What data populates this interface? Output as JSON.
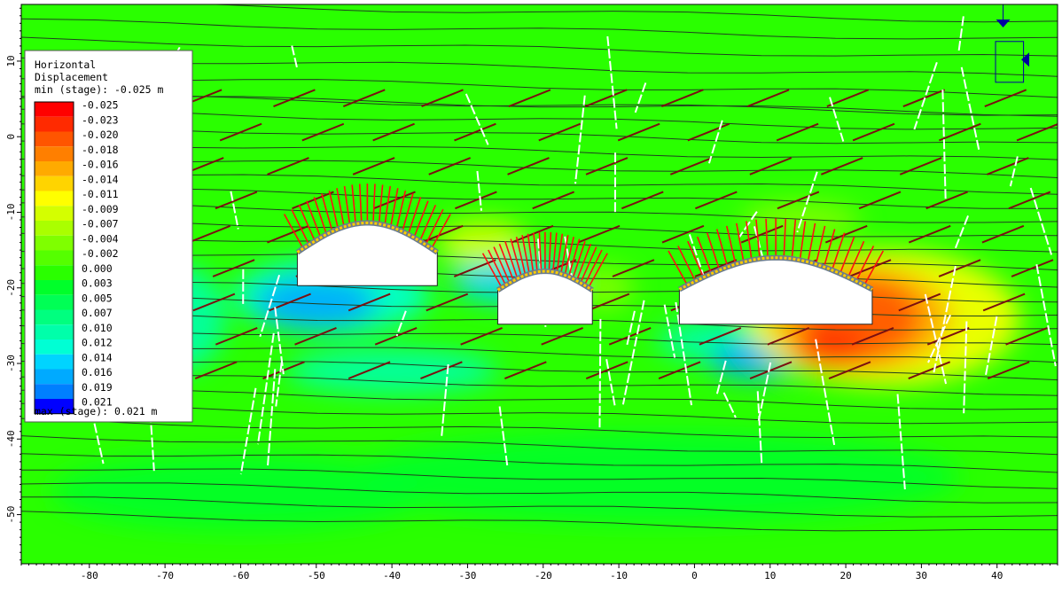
{
  "chart_data": {
    "type": "heatmap",
    "title": "",
    "xlabel": "",
    "ylabel": "",
    "xlim": [
      -89,
      48
    ],
    "ylim": [
      -56.5,
      17.5
    ],
    "x_ticks": [
      -80,
      -70,
      -60,
      -50,
      -40,
      -30,
      -20,
      -10,
      0,
      10,
      20,
      30,
      40
    ],
    "y_ticks": [
      10,
      0,
      -10,
      -20,
      -30,
      -40,
      -50
    ],
    "grid": false,
    "legend": {
      "placement": "top-left",
      "title_lines": [
        "Horizontal",
        "Displacement",
        "min (stage): -0.025 m"
      ],
      "max_line": "max (stage): 0.021 m",
      "entries": [
        {
          "label": "-0.025",
          "color": "#ff0000"
        },
        {
          "label": "-0.023",
          "color": "#ff2a00"
        },
        {
          "label": "-0.020",
          "color": "#ff5500"
        },
        {
          "label": "-0.018",
          "color": "#ff7f00"
        },
        {
          "label": "-0.016",
          "color": "#ffaa00"
        },
        {
          "label": "-0.014",
          "color": "#ffd400"
        },
        {
          "label": "-0.011",
          "color": "#ffff00"
        },
        {
          "label": "-0.009",
          "color": "#d4ff00"
        },
        {
          "label": "-0.007",
          "color": "#aaff00"
        },
        {
          "label": "-0.004",
          "color": "#7fff00"
        },
        {
          "label": "-0.002",
          "color": "#55ff00"
        },
        {
          "label": "0.000",
          "color": "#2aff00"
        },
        {
          "label": "0.003",
          "color": "#00ff2a"
        },
        {
          "label": "0.005",
          "color": "#00ff55"
        },
        {
          "label": "0.007",
          "color": "#00ff7f"
        },
        {
          "label": "0.010",
          "color": "#00ffaa"
        },
        {
          "label": "0.012",
          "color": "#00ffd4"
        },
        {
          "label": "0.014",
          "color": "#00d4ff"
        },
        {
          "label": "0.016",
          "color": "#00aaff"
        },
        {
          "label": "0.019",
          "color": "#007fff"
        },
        {
          "label": "0.021",
          "color": "#0000ff"
        }
      ]
    },
    "background_color": "#2aff00",
    "contour_regions": [
      {
        "type": "ellipse",
        "cx": -48,
        "cy": -21,
        "rx": 13,
        "ry": 5,
        "value": 0.012
      },
      {
        "type": "ellipse",
        "cx": -50,
        "cy": -22,
        "rx": 8,
        "ry": 3.5,
        "value": 0.016
      },
      {
        "type": "ellipse",
        "cx": -24,
        "cy": -19,
        "rx": 8,
        "ry": 3,
        "value": 0.014
      },
      {
        "type": "ellipse",
        "cx": -40,
        "cy": -31,
        "rx": 14,
        "ry": 3,
        "value": 0.01
      },
      {
        "type": "ellipse",
        "cx": -68,
        "cy": -24,
        "rx": 6,
        "ry": 7,
        "value": 0.01
      },
      {
        "type": "ellipse",
        "cx": 5,
        "cy": -27,
        "rx": 10,
        "ry": 3,
        "value": 0.01
      },
      {
        "type": "ellipse",
        "cx": 8,
        "cy": -29.5,
        "rx": 6,
        "ry": 2.5,
        "value": 0.016
      },
      {
        "type": "ellipse",
        "cx": 25,
        "cy": -24,
        "rx": 18,
        "ry": 9,
        "value": -0.011
      },
      {
        "type": "ellipse",
        "cx": 22,
        "cy": -24,
        "rx": 12,
        "ry": 7,
        "value": -0.016
      },
      {
        "type": "ellipse",
        "cx": 22,
        "cy": -24,
        "rx": 8,
        "ry": 5.5,
        "value": -0.02
      },
      {
        "type": "ellipse",
        "cx": 18,
        "cy": -28,
        "rx": 5,
        "ry": 2.5,
        "value": -0.023
      },
      {
        "type": "ellipse",
        "cx": 14,
        "cy": -11,
        "rx": 8,
        "ry": 2.5,
        "value": -0.004
      },
      {
        "type": "ellipse",
        "cx": -28,
        "cy": -14,
        "rx": 6,
        "ry": 3,
        "value": -0.009
      },
      {
        "type": "ellipse",
        "cx": -12,
        "cy": -20,
        "rx": 4,
        "ry": 3,
        "value": -0.004
      },
      {
        "type": "ellipse",
        "cx": -5,
        "cy": -45,
        "rx": 40,
        "ry": 6,
        "value": 0.003
      },
      {
        "type": "ellipse",
        "cx": -60,
        "cy": -47,
        "rx": 25,
        "ry": 5,
        "value": 0.003
      }
    ],
    "excavations": [
      {
        "name": "left",
        "x0": -52.5,
        "x1": -34,
        "floor": -19.7,
        "spring": -15.3,
        "crown": -11.4
      },
      {
        "name": "middle",
        "x0": -26,
        "x1": -13.5,
        "floor": -24.8,
        "spring": -20.3,
        "crown": -17.8
      },
      {
        "name": "right",
        "x0": -2,
        "x1": 23.5,
        "floor": -24.8,
        "spring": -20.2,
        "crown": -16
      }
    ],
    "colors": {
      "bedding": "#1f3f1f",
      "cross_joints": "#7a1010",
      "white_joints": "#ffffff",
      "bolts": "#ff1010",
      "liner": "#ffcc00",
      "boundary": "#0000a0"
    }
  }
}
